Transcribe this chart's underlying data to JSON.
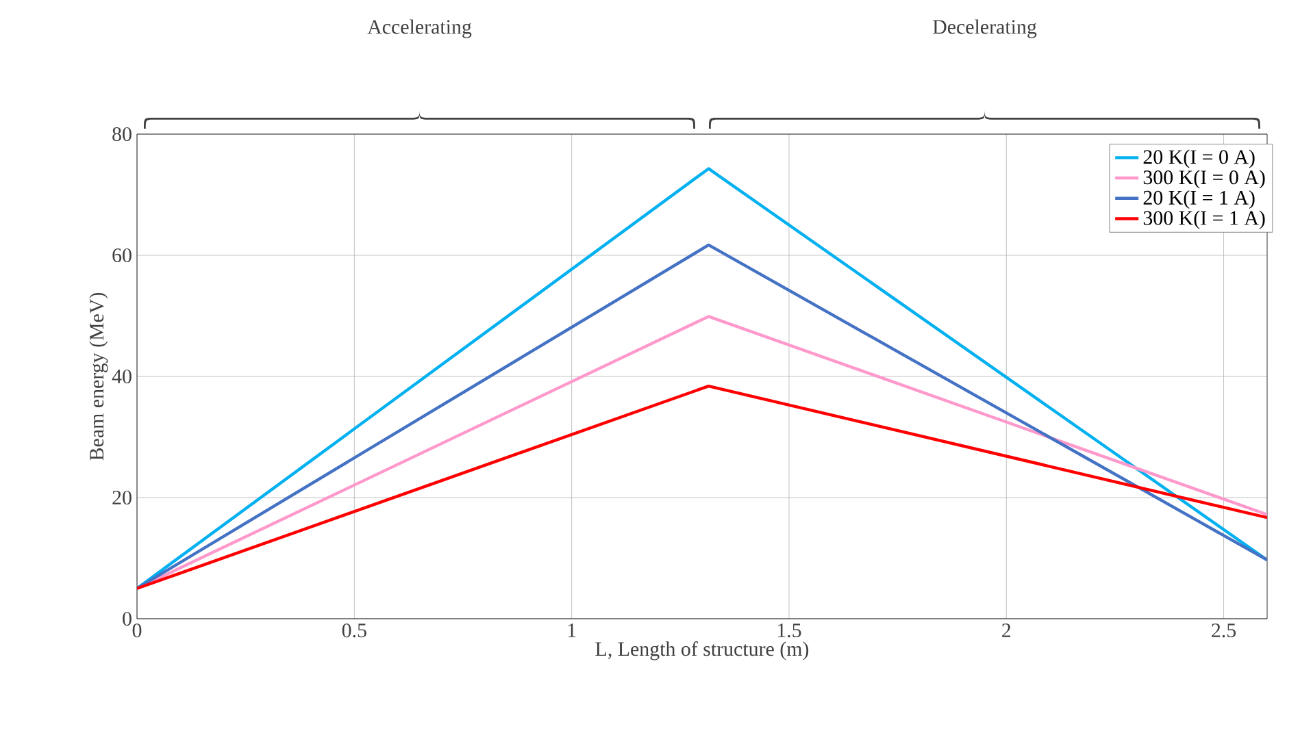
{
  "chart_data": {
    "type": "line",
    "xlabel": "L, Length of structure (m)",
    "ylabel": "Beam energy (MeV)",
    "annotations": [
      "Accelerating",
      "Decelerating"
    ],
    "x": [
      0,
      1.315,
      2.6
    ],
    "series": [
      {
        "name": "20 K(I = 0 A)",
        "color": "#00b0f0",
        "values": [
          5,
          74.3,
          9.7
        ]
      },
      {
        "name": "300 K(I = 0 A)",
        "color": "#ff99cc",
        "values": [
          5,
          49.9,
          17.2
        ]
      },
      {
        "name": "20 K(I = 1 A)",
        "color": "#4472c4",
        "values": [
          5,
          61.7,
          9.7
        ]
      },
      {
        "name": "300 K(I = 1 A)",
        "color": "#ff0000",
        "values": [
          5,
          38.4,
          16.7
        ]
      }
    ],
    "xlim": [
      0,
      2.6
    ],
    "ylim": [
      0,
      80
    ],
    "xticks": [
      0,
      0.5,
      1,
      1.5,
      2,
      2.5
    ],
    "yticks": [
      0,
      20,
      40,
      60,
      80
    ],
    "grid": true,
    "legend": "top right",
    "marker": "none",
    "line_style": "solid"
  }
}
